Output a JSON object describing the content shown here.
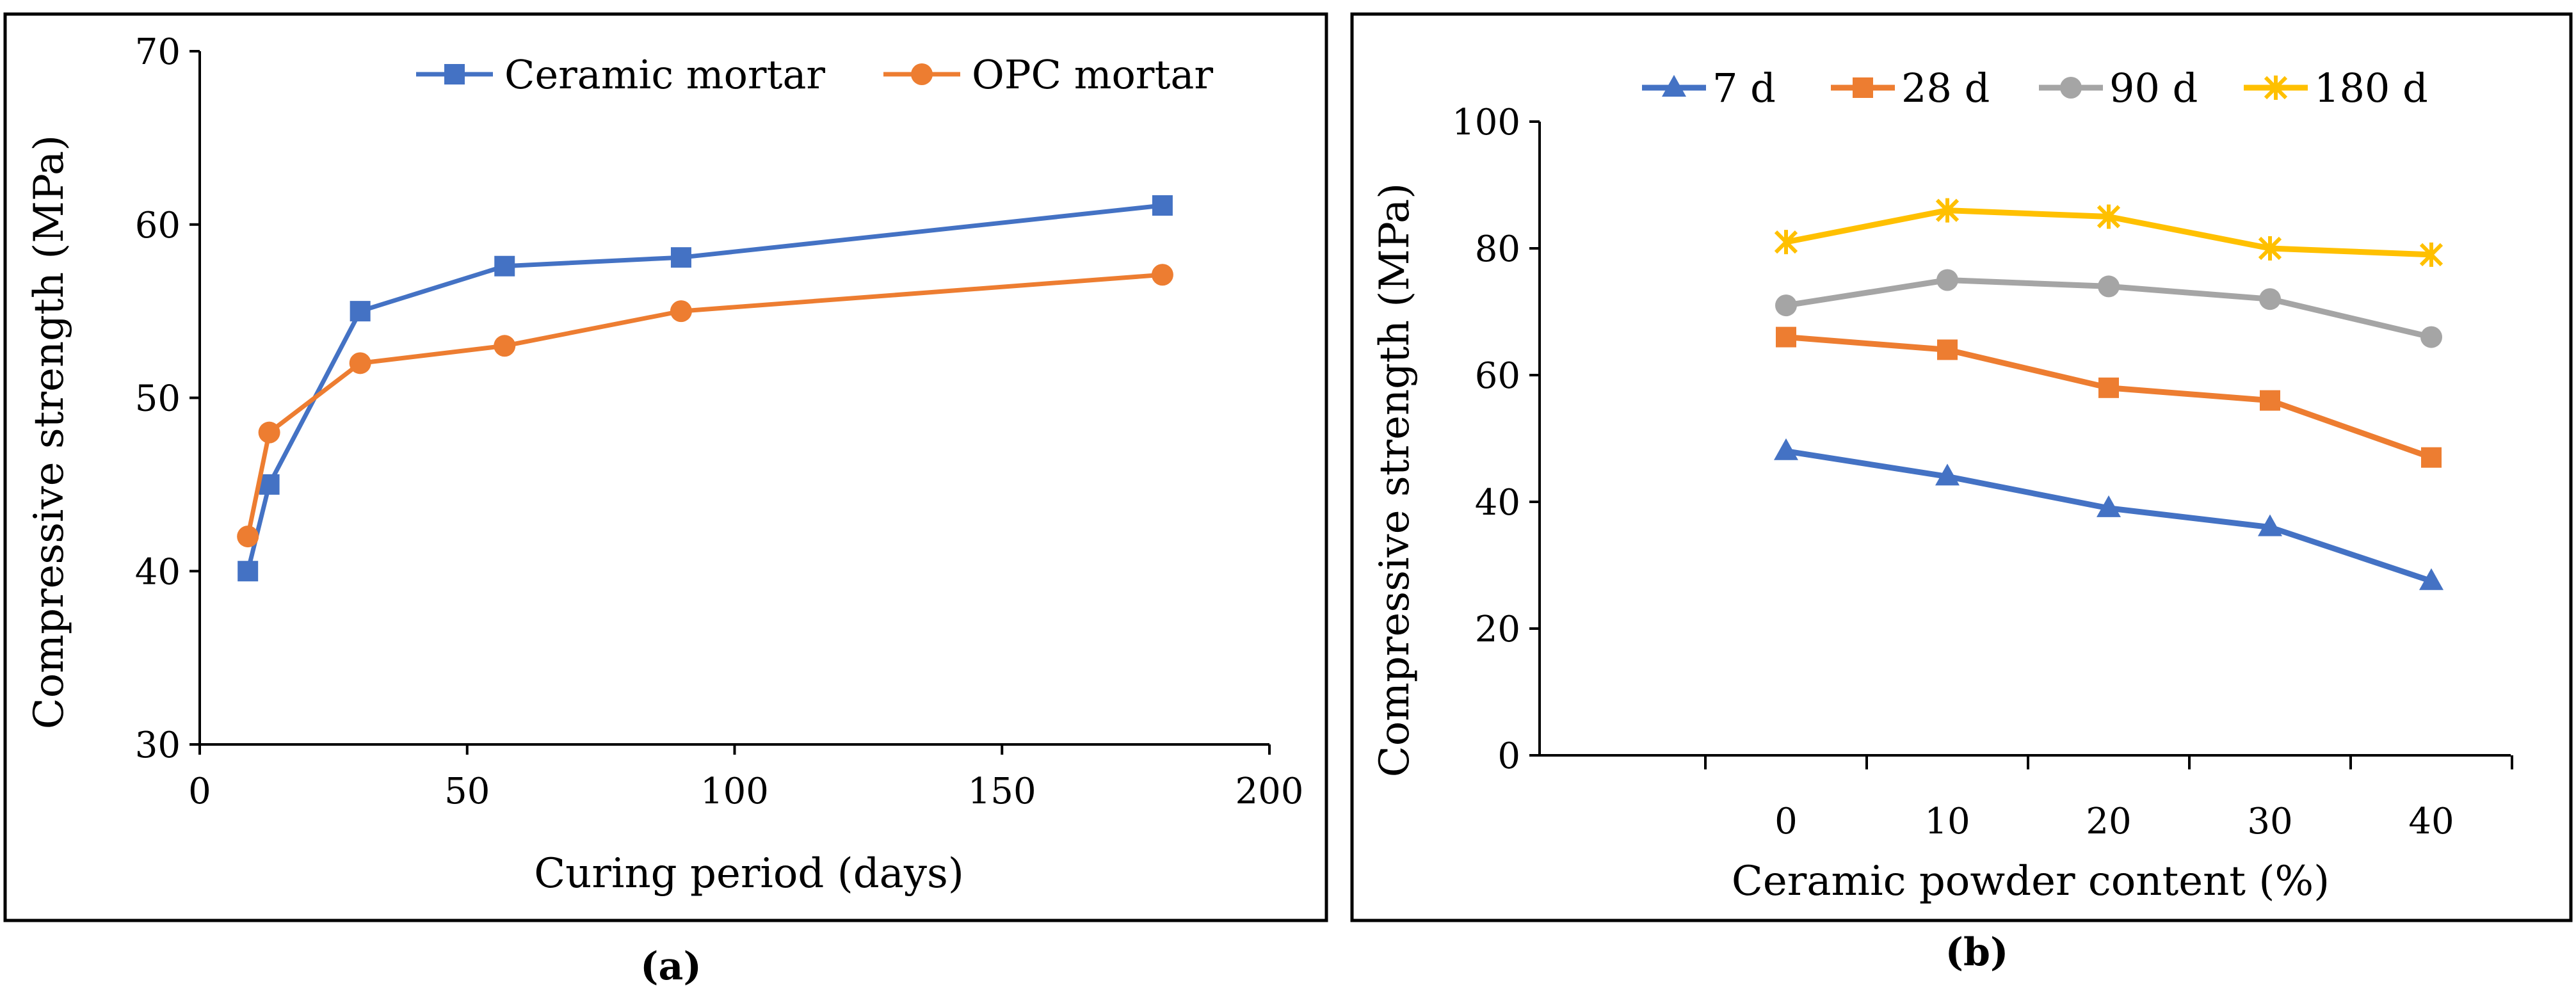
{
  "chart_data": [
    {
      "type": "line",
      "title": "",
      "xlabel": "Curing period (days)",
      "ylabel": "Compressive strength (MPa)",
      "xlim": [
        0,
        200
      ],
      "ylim": [
        30,
        70
      ],
      "xticks": [
        0,
        50,
        100,
        150,
        200
      ],
      "yticks": [
        30,
        40,
        50,
        60,
        70
      ],
      "x_tick_labels": [
        "0",
        "50",
        "100",
        "150",
        "200"
      ],
      "y_tick_labels": [
        "30",
        "40",
        "50",
        "60",
        "70"
      ],
      "grid": false,
      "legend_position": "top",
      "caption": "(a)",
      "series": [
        {
          "name": "Ceramic mortar",
          "color": "#4472C4",
          "marker": "square",
          "x": [
            9,
            13,
            30,
            57,
            90,
            180
          ],
          "y": [
            40,
            45,
            55,
            57.6,
            58.1,
            61.1
          ]
        },
        {
          "name": "OPC mortar",
          "color": "#ED7D31",
          "marker": "circle",
          "x": [
            9,
            13,
            30,
            57,
            90,
            180
          ],
          "y": [
            42,
            48,
            52,
            53,
            55,
            57.1
          ]
        }
      ]
    },
    {
      "type": "line",
      "title": "",
      "xlabel": "Ceramic powder content (%)",
      "ylabel": "Compressive strength (MPa)",
      "categories": [
        "0",
        "10",
        "20",
        "30",
        "40"
      ],
      "ylim": [
        0,
        100
      ],
      "yticks": [
        0,
        20,
        40,
        60,
        80,
        100
      ],
      "y_tick_labels": [
        "0",
        "20",
        "40",
        "60",
        "80",
        "100"
      ],
      "grid": false,
      "legend_position": "top",
      "caption": "(b)",
      "series": [
        {
          "name": "7 d",
          "color": "#4472C4",
          "marker": "triangle",
          "values": [
            48,
            44,
            39,
            36,
            27.5
          ]
        },
        {
          "name": "28 d",
          "color": "#ED7D31",
          "marker": "square",
          "values": [
            66,
            64,
            58,
            56,
            47
          ]
        },
        {
          "name": "90 d",
          "color": "#A5A5A5",
          "marker": "circle",
          "values": [
            71,
            75,
            74,
            72,
            66
          ]
        },
        {
          "name": "180 d",
          "color": "#FFC000",
          "marker": "star",
          "values": [
            81,
            86,
            85,
            80,
            79
          ]
        }
      ]
    }
  ]
}
